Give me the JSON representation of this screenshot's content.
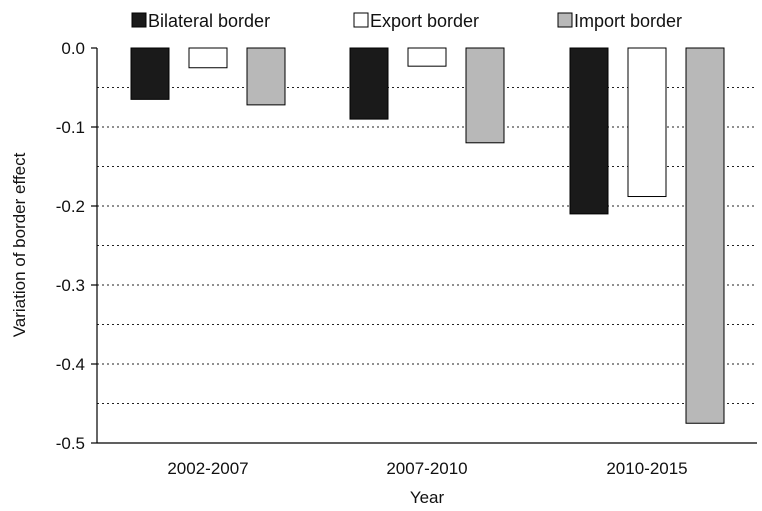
{
  "chart_data": {
    "type": "bar",
    "title": "",
    "xlabel": "Year",
    "ylabel": "Variation of border effect",
    "categories": [
      "2002-2007",
      "2007-2010",
      "2010-2015"
    ],
    "series": [
      {
        "name": "Bilateral border",
        "color": "#1a1a1a",
        "values": [
          -0.065,
          -0.09,
          -0.21
        ]
      },
      {
        "name": "Export border",
        "color": "#ffffff",
        "values": [
          -0.025,
          -0.023,
          -0.188
        ]
      },
      {
        "name": "Import border",
        "color": "#b8b8b8",
        "values": [
          -0.072,
          -0.12,
          -0.475
        ]
      }
    ],
    "ylim": [
      -0.5,
      0.0
    ],
    "yticks": [
      0.0,
      -0.1,
      -0.2,
      -0.3,
      -0.4,
      -0.5
    ],
    "ytick_labels": [
      "0.0",
      "-0.1",
      "-0.2",
      "-0.3",
      "-0.4",
      "-0.5"
    ],
    "grid": "dotted horizontal every 0.05",
    "legend_position": "top"
  }
}
